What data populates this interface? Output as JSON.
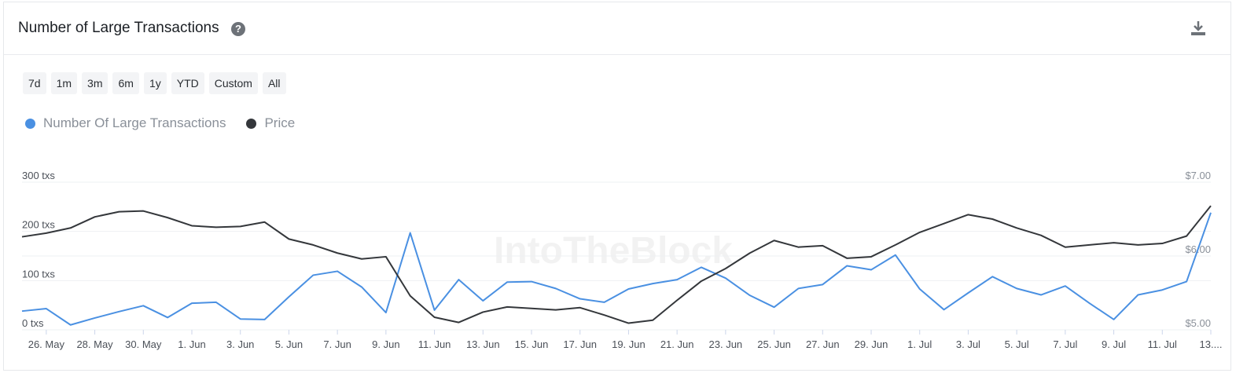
{
  "header": {
    "title": "Number of Large Transactions",
    "help": "?",
    "ranges": [
      "7d",
      "1m",
      "3m",
      "6m",
      "1y",
      "YTD",
      "Custom",
      "All"
    ]
  },
  "chart_data": {
    "type": "line",
    "watermark": "IntoTheBlock",
    "categories": [
      null,
      "26. May",
      null,
      "28. May",
      null,
      "30. May",
      null,
      "1. Jun",
      null,
      "3. Jun",
      null,
      "5. Jun",
      null,
      "7. Jun",
      null,
      "9. Jun",
      null,
      "11. Jun",
      null,
      "13. Jun",
      null,
      "15. Jun",
      null,
      "17. Jun",
      null,
      "19. Jun",
      null,
      "21. Jun",
      null,
      "23. Jun",
      null,
      "25. Jun",
      null,
      "27. Jun",
      null,
      "29. Jun",
      null,
      "1. Jul",
      null,
      "3. Jul",
      null,
      "5. Jul",
      null,
      "7. Jul",
      null,
      "9. Jul",
      null,
      "11. Jul",
      null,
      "13...."
    ],
    "series": [
      {
        "name": "Number Of Large Transactions",
        "color": "#4a90e2",
        "values": [
          38,
          43,
          10,
          24,
          37,
          49,
          25,
          54,
          56,
          22,
          21,
          67,
          111,
          119,
          87,
          35,
          197,
          40,
          102,
          59,
          97,
          98,
          84,
          63,
          56,
          83,
          94,
          102,
          127,
          105,
          70,
          46,
          84,
          92,
          130,
          122,
          152,
          83,
          41,
          75,
          108,
          84,
          71,
          89,
          54,
          21,
          71,
          81,
          98,
          238
        ]
      },
      {
        "name": "Price",
        "color": "#34373b",
        "axis": "y2",
        "values": [
          6.26,
          6.31,
          6.38,
          6.53,
          6.6,
          6.61,
          6.52,
          6.41,
          6.39,
          6.4,
          6.46,
          6.23,
          6.15,
          6.04,
          5.96,
          5.99,
          5.46,
          5.17,
          5.1,
          5.24,
          5.31,
          5.29,
          5.27,
          5.3,
          5.2,
          5.09,
          5.13,
          5.4,
          5.66,
          5.83,
          6.04,
          6.21,
          6.12,
          6.14,
          5.97,
          5.99,
          6.15,
          6.32,
          6.44,
          6.56,
          6.5,
          6.38,
          6.28,
          6.12,
          6.15,
          6.18,
          6.15,
          6.17,
          6.27,
          6.68
        ]
      }
    ],
    "ylim": [
      0,
      300
    ],
    "yticks": [
      {
        "value": 0,
        "label": "0 txs"
      },
      {
        "value": 100,
        "label": "100 txs"
      },
      {
        "value": 200,
        "label": "200 txs"
      },
      {
        "value": 300,
        "label": "300 txs"
      }
    ],
    "y2lim": [
      5,
      7
    ],
    "y2ticks": [
      {
        "value": 5,
        "label": "$5.00"
      },
      {
        "value": 6,
        "label": "$6.00"
      },
      {
        "value": 7,
        "label": "$7.00"
      }
    ],
    "grid": true
  }
}
